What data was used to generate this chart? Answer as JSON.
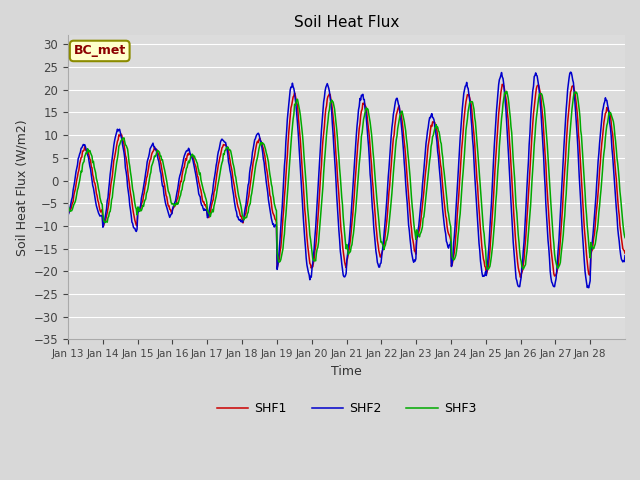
{
  "title": "Soil Heat Flux",
  "xlabel": "Time",
  "ylabel": "Soil Heat Flux (W/m2)",
  "ylim": [
    -35,
    32
  ],
  "yticks": [
    -35,
    -30,
    -25,
    -20,
    -15,
    -10,
    -5,
    0,
    5,
    10,
    15,
    20,
    25,
    30
  ],
  "fig_bg_color": "#d8d8d8",
  "plot_bg_color": "#dcdcdc",
  "grid_color": "#ffffff",
  "annotation_text": "BC_met",
  "annotation_bg": "#ffffcc",
  "annotation_border": "#8B8B00",
  "annotation_text_color": "#8B0000",
  "line_colors": {
    "SHF1": "#cc0000",
    "SHF2": "#0000cc",
    "SHF3": "#00aa00"
  },
  "xtick_labels": [
    "Jan 13",
    "Jan 14",
    "Jan 15",
    "Jan 16",
    "Jan 17",
    "Jan 18",
    "Jan 19",
    "Jan 20",
    "Jan 21",
    "Jan 22",
    "Jan 23",
    "Jan 24",
    "Jan 25",
    "Jan 26",
    "Jan 27",
    "Jan 28"
  ],
  "num_days": 16,
  "start_day": 13
}
